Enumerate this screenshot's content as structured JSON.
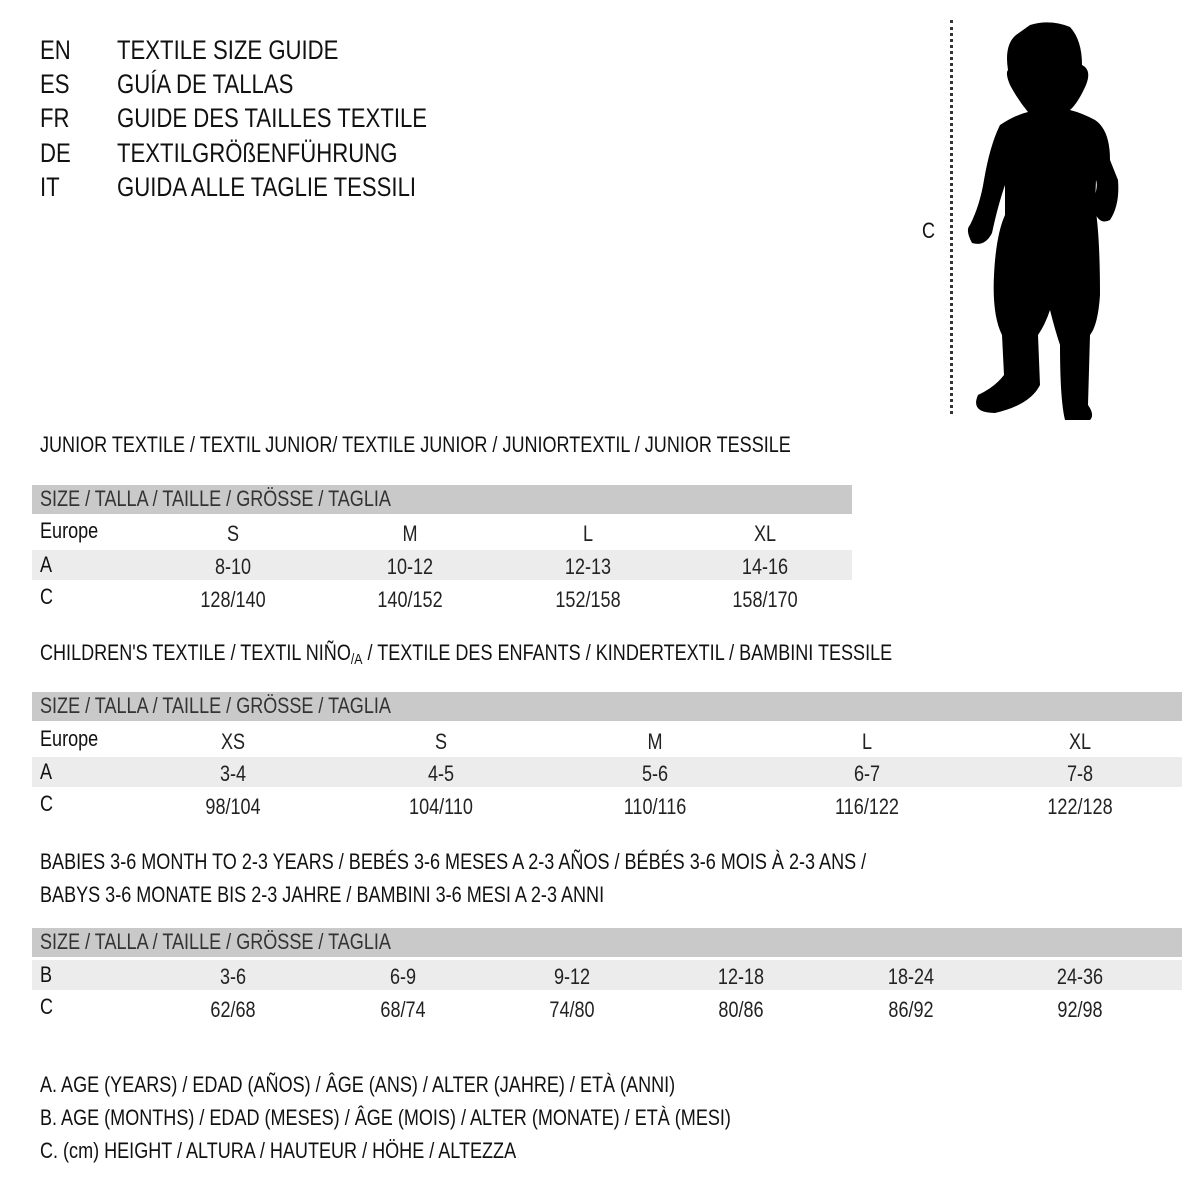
{
  "header": [
    {
      "code": "EN",
      "text": "TEXTILE SIZE GUIDE"
    },
    {
      "code": "ES",
      "text": "GUÍA DE TALLAS"
    },
    {
      "code": "FR",
      "text": "GUIDE DES TAILLES TEXTILE"
    },
    {
      "code": "DE",
      "text": "TEXTILGRÖßENFÜHRUNG"
    },
    {
      "code": "IT",
      "text": "GUIDA ALLE TAGLIE TESSILI"
    }
  ],
  "figure": {
    "measure_label": "C",
    "icon": "child-silhouette-icon"
  },
  "size_header": "SIZE / TALLA / TAILLE / GRÖSSE / TAGLIA",
  "junior": {
    "title": "JUNIOR TEXTILE / TEXTIL JUNIOR/ TEXTILE JUNIOR / JUNIORTEXTIL / JUNIOR TESSILE",
    "rows": [
      {
        "label": "Europe",
        "values": [
          "S",
          "M",
          "L",
          "XL"
        ]
      },
      {
        "label": "A",
        "values": [
          "8-10",
          "10-12",
          "12-13",
          "14-16"
        ]
      },
      {
        "label": "C",
        "values": [
          "128/140",
          "140/152",
          "152/158",
          "158/170"
        ]
      }
    ]
  },
  "children": {
    "title_pre": "CHILDREN'S TEXTILE / TEXTIL NIÑO",
    "title_sub": "/A",
    "title_post": " / TEXTILE DES ENFANTS / KINDERTEXTIL / BAMBINI TESSILE",
    "rows": [
      {
        "label": "Europe",
        "values": [
          "XS",
          "S",
          "M",
          "L",
          "XL"
        ]
      },
      {
        "label": "A",
        "values": [
          "3-4",
          "4-5",
          "5-6",
          "6-7",
          "7-8"
        ]
      },
      {
        "label": "C",
        "values": [
          "98/104",
          "104/110",
          "110/116",
          "116/122",
          "122/128"
        ]
      }
    ]
  },
  "babies": {
    "title_line1": "BABIES 3-6 MONTH TO 2-3 YEARS / BEBÉS 3-6 MESES A 2-3 AÑOS / BÉBÉS 3-6 MOIS À 2-3 ANS /",
    "title_line2": "BABYS 3-6 MONATE BIS 2-3 JAHRE / BAMBINI 3-6 MESI A 2-3 ANNI",
    "rows": [
      {
        "label": "B",
        "values": [
          "3-6",
          "6-9",
          "9-12",
          "12-18",
          "18-24",
          "24-36"
        ]
      },
      {
        "label": "C",
        "values": [
          "62/68",
          "68/74",
          "74/80",
          "80/86",
          "86/92",
          "92/98"
        ]
      }
    ]
  },
  "legend": [
    "A. AGE (YEARS) / EDAD (AÑOS) / ÂGE (ANS) / ALTER (JAHRE) / ETÀ (ANNI)",
    "B. AGE (MONTHS) / EDAD (MESES) / ÂGE (MOIS) / ALTER (MONATE) / ETÀ (MESI)",
    "C. (cm) HEIGHT / ALTURA / HAUTEUR / HÖHE / ALTEZZA"
  ],
  "colors": {
    "header_bar": "#c9c9c9",
    "row_band": "#ececec",
    "text": "#111111"
  }
}
